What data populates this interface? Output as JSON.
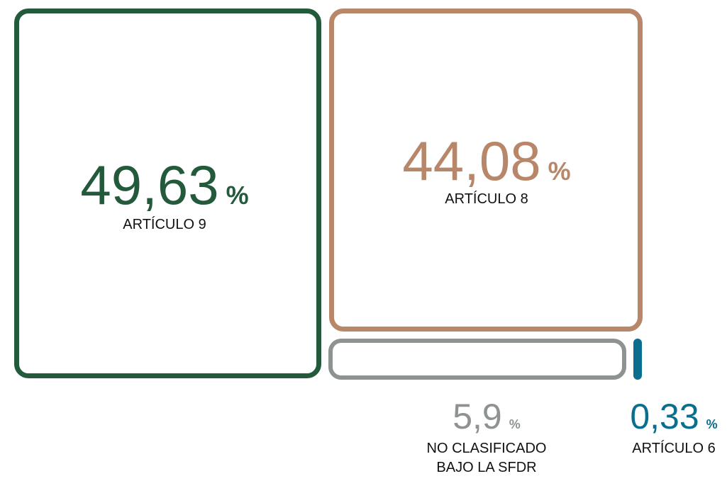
{
  "chart_data": {
    "type": "treemap",
    "categories": [
      "ARTÍCULO 9",
      "ARTÍCULO 8",
      "NO CLASIFICADO BAJO LA SFDR",
      "ARTÍCULO 6"
    ],
    "values": [
      49.63,
      44.08,
      5.9,
      0.33
    ],
    "value_labels": [
      "49,63",
      "44,08",
      "5,9",
      "0,33"
    ],
    "unit": "%",
    "colors": [
      "#245a3c",
      "#b8876a",
      "#8e9391",
      "#0b6e8e"
    ]
  }
}
